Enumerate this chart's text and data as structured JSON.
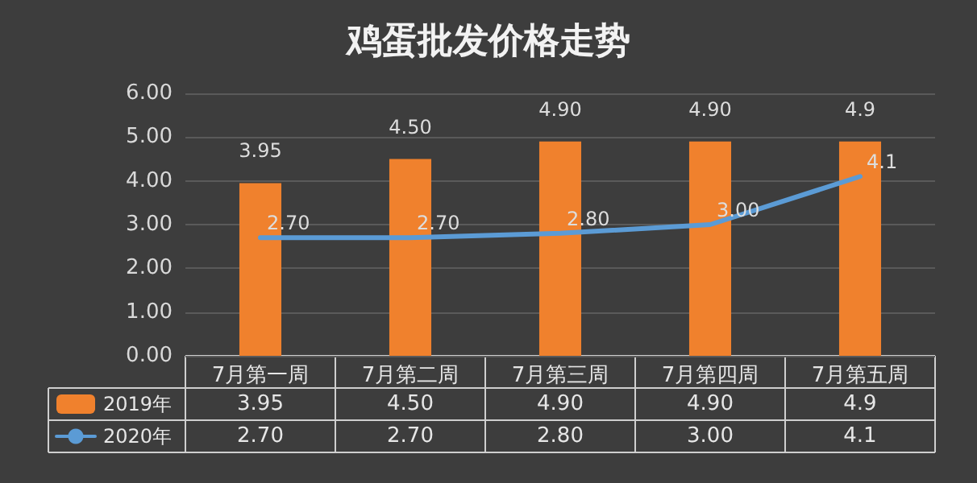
{
  "chart_data": {
    "type": "bar",
    "title": "鸡蛋批发价格走势",
    "categories": [
      "7月第一周",
      "7月第二周",
      "7月第三周",
      "7月第四周",
      "7月第五周"
    ],
    "series": [
      {
        "name": "2019年",
        "color": "#f0812d",
        "values": [
          3.95,
          4.5,
          4.9,
          4.9,
          4.9
        ],
        "value_labels": [
          "3.95",
          "4.50",
          "4.90",
          "4.90",
          "4.9"
        ]
      },
      {
        "name": "2020年",
        "type": "line",
        "color": "#5b9bd5",
        "values": [
          2.7,
          2.7,
          2.8,
          3.0,
          4.1
        ],
        "value_labels": [
          "2.70",
          "2.70",
          "2.80",
          "3.00",
          "4.1"
        ]
      }
    ],
    "ylim": [
      0,
      6
    ],
    "yticks": [
      {
        "value": 0,
        "label": "0.00"
      },
      {
        "value": 1,
        "label": "1.00"
      },
      {
        "value": 2,
        "label": "2.00"
      },
      {
        "value": 3,
        "label": "3.00"
      },
      {
        "value": 4,
        "label": "4.00"
      },
      {
        "value": 5,
        "label": "5.00"
      },
      {
        "value": 6,
        "label": "6.00"
      }
    ],
    "grid": "y",
    "legend": "bottom",
    "marker": "none",
    "line_style": "solid"
  }
}
